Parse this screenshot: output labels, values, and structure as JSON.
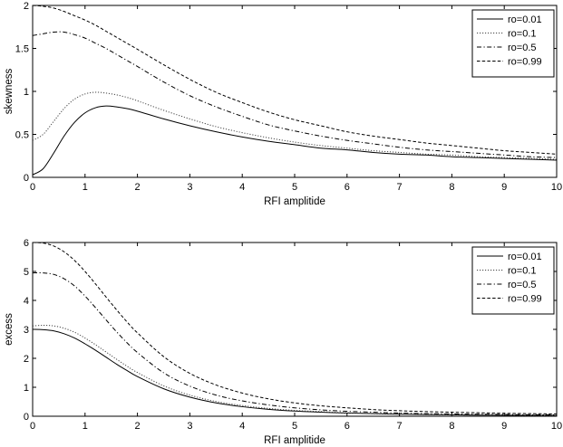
{
  "chart_data": [
    {
      "type": "line",
      "title": "",
      "xlabel": "RFI amplitide",
      "ylabel": "skewness",
      "xlim": [
        0,
        10
      ],
      "ylim": [
        0,
        2
      ],
      "xticks": [
        "0",
        "1",
        "2",
        "3",
        "4",
        "5",
        "6",
        "7",
        "8",
        "9",
        "10"
      ],
      "yticks": [
        "0",
        "0.5",
        "1",
        "1.5",
        "2"
      ],
      "grid": false,
      "legend_position": "top-right",
      "series": [
        {
          "name": "ro=0.01",
          "style": "solid",
          "x": [
            0,
            0.2,
            0.4,
            0.6,
            0.8,
            1.0,
            1.2,
            1.4,
            1.6,
            1.8,
            2.0,
            2.5,
            3,
            3.5,
            4,
            4.5,
            5,
            5.5,
            6,
            6.5,
            7,
            7.5,
            8,
            8.5,
            9,
            9.5,
            10
          ],
          "y": [
            0.03,
            0.1,
            0.28,
            0.48,
            0.64,
            0.75,
            0.81,
            0.83,
            0.82,
            0.8,
            0.77,
            0.68,
            0.6,
            0.53,
            0.47,
            0.42,
            0.38,
            0.34,
            0.32,
            0.29,
            0.27,
            0.26,
            0.24,
            0.23,
            0.22,
            0.21,
            0.2
          ]
        },
        {
          "name": "ro=0.1",
          "style": "dotted",
          "x": [
            0,
            0.2,
            0.4,
            0.6,
            0.8,
            1.0,
            1.2,
            1.4,
            1.6,
            1.8,
            2.0,
            2.5,
            3,
            3.5,
            4,
            4.5,
            5,
            5.5,
            6,
            6.5,
            7,
            7.5,
            8,
            8.5,
            9,
            9.5,
            10
          ],
          "y": [
            0.43,
            0.5,
            0.65,
            0.8,
            0.91,
            0.97,
            0.99,
            0.98,
            0.96,
            0.93,
            0.89,
            0.78,
            0.68,
            0.59,
            0.52,
            0.46,
            0.41,
            0.37,
            0.34,
            0.31,
            0.29,
            0.27,
            0.26,
            0.24,
            0.23,
            0.22,
            0.21
          ]
        },
        {
          "name": "ro=0.5",
          "style": "dashdot",
          "x": [
            0,
            0.2,
            0.4,
            0.6,
            0.8,
            1.0,
            1.2,
            1.4,
            1.6,
            1.8,
            2.0,
            2.5,
            3,
            3.5,
            4,
            4.5,
            5,
            5.5,
            6,
            6.5,
            7,
            7.5,
            8,
            8.5,
            9,
            9.5,
            10
          ],
          "y": [
            1.65,
            1.67,
            1.69,
            1.69,
            1.66,
            1.62,
            1.56,
            1.5,
            1.43,
            1.36,
            1.29,
            1.11,
            0.95,
            0.82,
            0.71,
            0.61,
            0.54,
            0.48,
            0.43,
            0.39,
            0.35,
            0.32,
            0.3,
            0.28,
            0.26,
            0.24,
            0.23
          ]
        },
        {
          "name": "ro=0.99",
          "style": "dashed",
          "x": [
            0,
            0.2,
            0.4,
            0.6,
            0.8,
            1.0,
            1.2,
            1.4,
            1.6,
            1.8,
            2.0,
            2.5,
            3,
            3.5,
            4,
            4.5,
            5,
            5.5,
            6,
            6.5,
            7,
            7.5,
            8,
            8.5,
            9,
            9.5,
            10
          ],
          "y": [
            2.0,
            1.99,
            1.97,
            1.93,
            1.88,
            1.83,
            1.77,
            1.7,
            1.63,
            1.56,
            1.49,
            1.31,
            1.14,
            0.99,
            0.87,
            0.76,
            0.67,
            0.6,
            0.53,
            0.48,
            0.44,
            0.4,
            0.37,
            0.34,
            0.31,
            0.29,
            0.27
          ]
        }
      ]
    },
    {
      "type": "line",
      "title": "",
      "xlabel": "RFI amplitide",
      "ylabel": "excess",
      "xlim": [
        0,
        10
      ],
      "ylim": [
        0,
        6
      ],
      "xticks": [
        "0",
        "1",
        "2",
        "3",
        "4",
        "5",
        "6",
        "7",
        "8",
        "9",
        "10"
      ],
      "yticks": [
        "0",
        "1",
        "2",
        "3",
        "4",
        "5",
        "6"
      ],
      "grid": false,
      "legend_position": "top-right",
      "series": [
        {
          "name": "ro=0.01",
          "style": "solid",
          "x": [
            0,
            0.2,
            0.4,
            0.6,
            0.8,
            1.0,
            1.2,
            1.4,
            1.6,
            1.8,
            2.0,
            2.5,
            3,
            3.5,
            4,
            4.5,
            5,
            5.5,
            6,
            6.5,
            7,
            7.5,
            8,
            8.5,
            9,
            9.5,
            10
          ],
          "y": [
            3.0,
            2.99,
            2.95,
            2.85,
            2.7,
            2.5,
            2.28,
            2.04,
            1.8,
            1.58,
            1.37,
            0.95,
            0.66,
            0.46,
            0.33,
            0.24,
            0.18,
            0.14,
            0.11,
            0.09,
            0.07,
            0.06,
            0.05,
            0.04,
            0.035,
            0.03,
            0.03
          ]
        },
        {
          "name": "ro=0.1",
          "style": "dotted",
          "x": [
            0,
            0.2,
            0.4,
            0.6,
            0.8,
            1.0,
            1.2,
            1.4,
            1.6,
            1.8,
            2.0,
            2.5,
            3,
            3.5,
            4,
            4.5,
            5,
            5.5,
            6,
            6.5,
            7,
            7.5,
            8,
            8.5,
            9,
            9.5,
            10
          ],
          "y": [
            3.12,
            3.14,
            3.12,
            3.04,
            2.9,
            2.7,
            2.47,
            2.22,
            1.97,
            1.73,
            1.51,
            1.05,
            0.73,
            0.51,
            0.37,
            0.27,
            0.2,
            0.16,
            0.12,
            0.1,
            0.08,
            0.07,
            0.06,
            0.05,
            0.04,
            0.035,
            0.03
          ]
        },
        {
          "name": "ro=0.5",
          "style": "dashdot",
          "x": [
            0,
            0.2,
            0.4,
            0.6,
            0.8,
            1.0,
            1.2,
            1.4,
            1.6,
            1.8,
            2.0,
            2.5,
            3,
            3.5,
            4,
            4.5,
            5,
            5.5,
            6,
            6.5,
            7,
            7.5,
            8,
            8.5,
            9,
            9.5,
            10
          ],
          "y": [
            4.95,
            4.95,
            4.9,
            4.75,
            4.5,
            4.15,
            3.75,
            3.33,
            2.92,
            2.54,
            2.2,
            1.5,
            1.04,
            0.73,
            0.53,
            0.39,
            0.29,
            0.22,
            0.17,
            0.14,
            0.11,
            0.09,
            0.08,
            0.07,
            0.06,
            0.05,
            0.05
          ]
        },
        {
          "name": "ro=0.99",
          "style": "dashed",
          "x": [
            0,
            0.2,
            0.4,
            0.6,
            0.8,
            1.0,
            1.2,
            1.4,
            1.6,
            1.8,
            2.0,
            2.5,
            3,
            3.5,
            4,
            4.5,
            5,
            5.5,
            6,
            6.5,
            7,
            7.5,
            8,
            8.5,
            9,
            9.5,
            10
          ],
          "y": [
            6.0,
            5.98,
            5.88,
            5.68,
            5.38,
            5.0,
            4.57,
            4.12,
            3.68,
            3.26,
            2.88,
            2.06,
            1.48,
            1.08,
            0.8,
            0.6,
            0.46,
            0.36,
            0.29,
            0.23,
            0.19,
            0.16,
            0.14,
            0.12,
            0.1,
            0.09,
            0.08
          ]
        }
      ]
    }
  ]
}
